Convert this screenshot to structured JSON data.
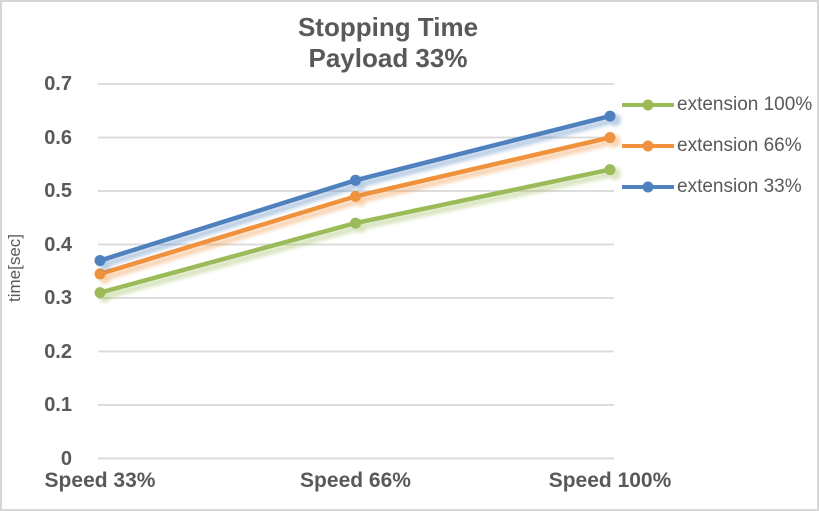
{
  "chart_data": {
    "type": "line",
    "title": "Stopping Time",
    "subtitle": "Payload 33%",
    "categories": [
      "Speed 33%",
      "Speed 66%",
      "Speed 100%"
    ],
    "series": [
      {
        "name": "extension 100%",
        "color": "#9BBB59",
        "values": [
          0.31,
          0.44,
          0.54
        ]
      },
      {
        "name": "extension 66%",
        "color": "#F0913E",
        "values": [
          0.345,
          0.49,
          0.6
        ]
      },
      {
        "name": "extension 33%",
        "color": "#4E81BD",
        "values": [
          0.37,
          0.52,
          0.64
        ]
      }
    ],
    "xlabel": "",
    "ylabel": "time[sec]",
    "ylim": [
      0,
      0.7
    ],
    "ytick_labels": [
      "0",
      "0.1",
      "0.2",
      "0.3",
      "0.4",
      "0.5",
      "0.6",
      "0.7"
    ],
    "grid": true,
    "legend_position": "right",
    "marker": "circle"
  },
  "colors": {
    "text": "#595959",
    "gridline": "#D9D9D9",
    "border": "#D6D6D6",
    "background": "#FFFFFF"
  }
}
